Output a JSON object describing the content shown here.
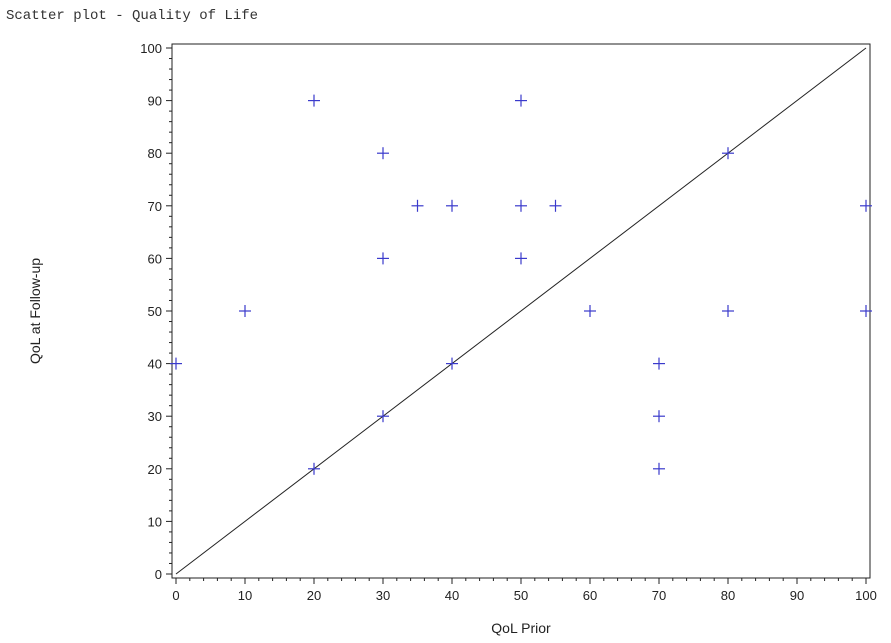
{
  "title": "Scatter plot - Quality of Life",
  "chart_data": {
    "type": "scatter",
    "title": "Scatter plot - Quality of Life",
    "xlabel": "QoL Prior",
    "ylabel": "QoL at Follow-up",
    "xlim": [
      0,
      100
    ],
    "ylim": [
      0,
      100
    ],
    "xticks": [
      0,
      10,
      20,
      30,
      40,
      50,
      60,
      70,
      80,
      90,
      100
    ],
    "yticks": [
      0,
      10,
      20,
      30,
      40,
      50,
      60,
      70,
      80,
      90,
      100
    ],
    "grid": false,
    "marker": "plus",
    "marker_color": "#3a3acc",
    "reference_line": {
      "from": [
        0,
        0
      ],
      "to": [
        100,
        100
      ],
      "color": "#222222"
    },
    "points": [
      {
        "x": 0,
        "y": 40
      },
      {
        "x": 10,
        "y": 50
      },
      {
        "x": 20,
        "y": 90
      },
      {
        "x": 20,
        "y": 20
      },
      {
        "x": 30,
        "y": 80
      },
      {
        "x": 30,
        "y": 60
      },
      {
        "x": 30,
        "y": 30
      },
      {
        "x": 35,
        "y": 70
      },
      {
        "x": 40,
        "y": 70
      },
      {
        "x": 40,
        "y": 40
      },
      {
        "x": 50,
        "y": 90
      },
      {
        "x": 50,
        "y": 70
      },
      {
        "x": 50,
        "y": 60
      },
      {
        "x": 55,
        "y": 70
      },
      {
        "x": 60,
        "y": 50
      },
      {
        "x": 70,
        "y": 40
      },
      {
        "x": 70,
        "y": 30
      },
      {
        "x": 70,
        "y": 20
      },
      {
        "x": 80,
        "y": 80
      },
      {
        "x": 80,
        "y": 50
      },
      {
        "x": 100,
        "y": 70
      },
      {
        "x": 100,
        "y": 50
      }
    ]
  }
}
